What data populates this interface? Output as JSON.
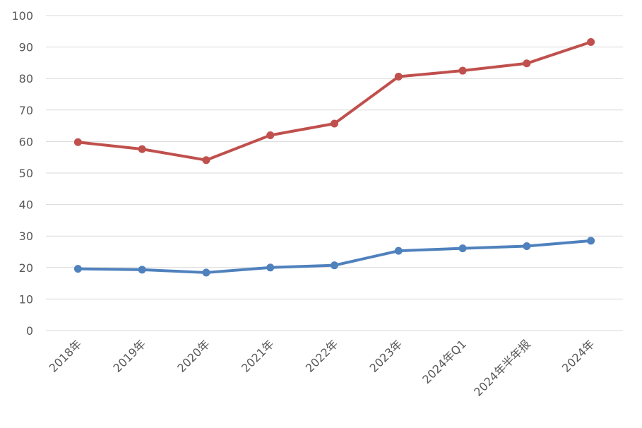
{
  "chart_data": {
    "type": "line",
    "title": "",
    "xlabel": "",
    "ylabel": "",
    "ylim": [
      0,
      100
    ],
    "yticks": [
      0,
      10,
      20,
      30,
      40,
      50,
      60,
      70,
      80,
      90,
      100
    ],
    "grid": true,
    "legend": "none",
    "categories": [
      "2018年",
      "2019年",
      "2020年",
      "2021年",
      "2022年",
      "2023年",
      "2024年Q1",
      "2024年半年报",
      "2024年"
    ],
    "series": [
      {
        "color": "#C0504D",
        "values": [
          59.8,
          57.6,
          54.1,
          62.0,
          65.7,
          80.6,
          82.5,
          84.8,
          91.6
        ]
      },
      {
        "color": "#4F81BD",
        "values": [
          19.6,
          19.3,
          18.4,
          20.0,
          20.7,
          25.3,
          26.1,
          26.8,
          28.5
        ]
      }
    ]
  }
}
